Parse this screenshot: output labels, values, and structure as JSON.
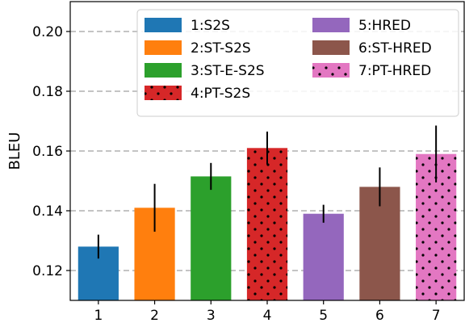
{
  "chart_data": {
    "type": "bar",
    "categories": [
      "1",
      "2",
      "3",
      "4",
      "5",
      "6",
      "7"
    ],
    "values": [
      0.128,
      0.141,
      0.1515,
      0.161,
      0.139,
      0.148,
      0.159
    ],
    "errors": [
      0.004,
      0.008,
      0.0045,
      0.0055,
      0.003,
      0.0065,
      0.0095
    ],
    "colors": [
      "#1f77b4",
      "#ff7f0e",
      "#2ca02c",
      "#d62728",
      "#9467bd",
      "#8c564b",
      "#e377c2"
    ],
    "hatched": [
      false,
      false,
      false,
      true,
      false,
      false,
      true
    ],
    "legend": [
      "1:S2S",
      "2:ST-S2S",
      "3:ST-E-S2S",
      "4:PT-S2S",
      "5:HRED",
      "6:ST-HRED",
      "7:PT-HRED"
    ],
    "legend_position": "top-right",
    "title": "",
    "xlabel": "",
    "ylabel": "BLEU",
    "ylim": [
      0.11,
      0.21
    ],
    "yticks": [
      0.12,
      0.14,
      0.16,
      0.18,
      0.2
    ],
    "ytick_labels": [
      "0.12",
      "0.14",
      "0.16",
      "0.18",
      "0.20"
    ],
    "grid": "horizontal-dashed"
  }
}
